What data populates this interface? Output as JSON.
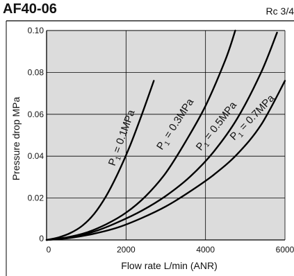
{
  "header": {
    "title": "AF40-06",
    "port": "Rc 3/4"
  },
  "colors": {
    "plot_background": "#dcdcdc",
    "grid": "#000000",
    "curve": "#000000"
  },
  "chart_data": {
    "type": "line",
    "title": "AF40-06",
    "subtitle": "Rc 3/4",
    "xlabel": "Flow rate  L/min (ANR)",
    "ylabel": "Pressure drop  MPa",
    "xlim": [
      0,
      6000
    ],
    "ylim": [
      0,
      0.1
    ],
    "x_ticks": [
      "0",
      "2000",
      "4000",
      "6000"
    ],
    "y_ticks": [
      "0",
      "0.02",
      "0.04",
      "0.06",
      "0.08",
      "0.10"
    ],
    "grid": true,
    "series": [
      {
        "name": "P1 = 0.1MPa",
        "sub": "1",
        "label_pre": "P",
        "label_post": " = 0.1MPa",
        "x": [
          0,
          300,
          600,
          900,
          1200,
          1500,
          1800,
          2100,
          2400,
          2700
        ],
        "y": [
          0,
          0.0012,
          0.0033,
          0.0068,
          0.0125,
          0.021,
          0.032,
          0.045,
          0.06,
          0.076
        ]
      },
      {
        "name": "P1 = 0.3MPa",
        "sub": "1",
        "label_pre": "P",
        "label_post": " = 0.3MPa",
        "x": [
          0,
          500,
          1000,
          1500,
          2000,
          2500,
          3000,
          3500,
          4000,
          4500,
          4750
        ],
        "y": [
          0,
          0.0012,
          0.0035,
          0.0075,
          0.013,
          0.021,
          0.032,
          0.047,
          0.064,
          0.086,
          0.1
        ]
      },
      {
        "name": "P1 = 0.5MPa",
        "sub": "1",
        "label_pre": "P",
        "label_post": " = 0.5MPa",
        "x": [
          0,
          600,
          1200,
          1800,
          2400,
          3000,
          3600,
          4200,
          4800,
          5400,
          5800
        ],
        "y": [
          0,
          0.0012,
          0.004,
          0.0085,
          0.014,
          0.021,
          0.03,
          0.042,
          0.058,
          0.08,
          0.099
        ]
      },
      {
        "name": "P1 = 0.7MPa",
        "sub": "1",
        "label_pre": "P",
        "label_post": " = 0.7MPa",
        "x": [
          0,
          600,
          1200,
          1800,
          2400,
          3000,
          3600,
          4200,
          4800,
          5400,
          6000
        ],
        "y": [
          0,
          0.001,
          0.003,
          0.006,
          0.0105,
          0.016,
          0.023,
          0.031,
          0.041,
          0.055,
          0.076
        ]
      }
    ]
  }
}
